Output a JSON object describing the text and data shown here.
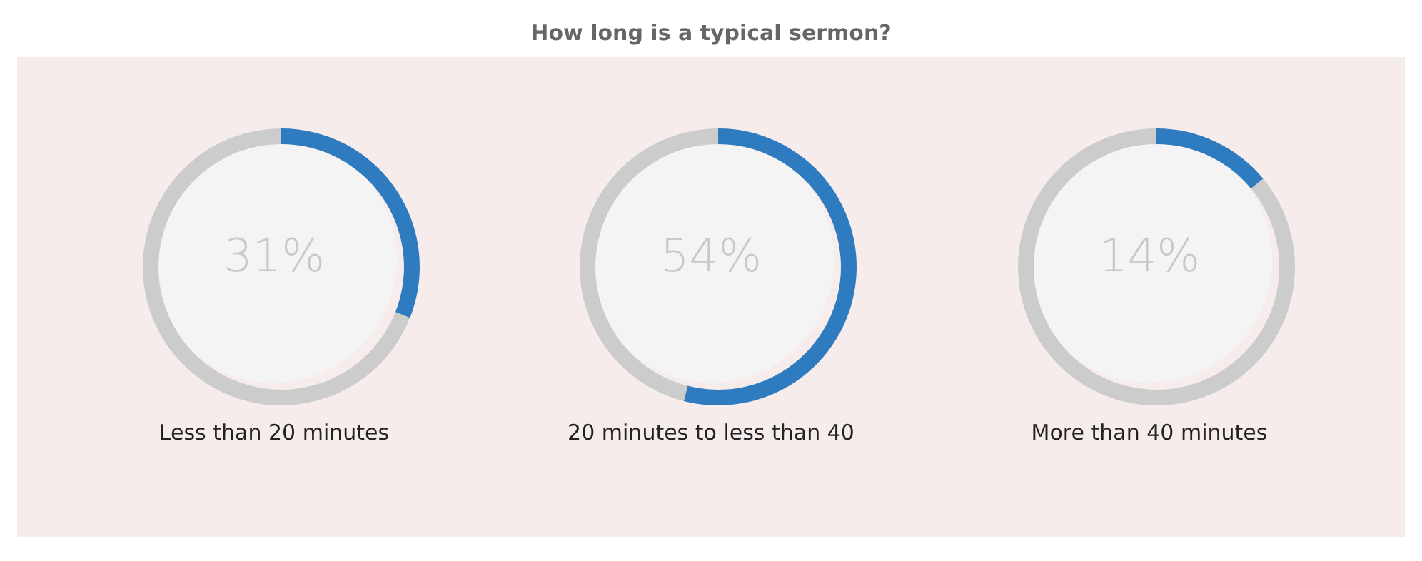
{
  "chart_data": [
    {
      "type": "other",
      "title": "How long is a typical sermon?"
    },
    {
      "type": "donut",
      "xlabel": "Less than 20 minutes",
      "categories": [
        null,
        null
      ],
      "values": [
        31,
        69
      ],
      "colors": [
        "#2f7bbf",
        "#cccccc"
      ],
      "annotations": [
        "31%"
      ]
    },
    {
      "type": "donut",
      "xlabel": "20 minutes to less than 40",
      "categories": [
        null,
        null
      ],
      "values": [
        54,
        46
      ],
      "colors": [
        "#2f7bbf",
        "#cccccc"
      ],
      "annotations": [
        "54%"
      ]
    },
    {
      "type": "donut",
      "xlabel": "More than 40 minutes",
      "categories": [
        null,
        null
      ],
      "values": [
        14,
        86
      ],
      "colors": [
        "#2f7bbf",
        "#cccccc"
      ],
      "annotations": [
        "14%"
      ]
    }
  ]
}
